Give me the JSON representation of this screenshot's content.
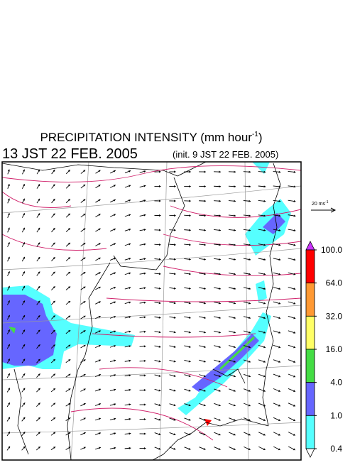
{
  "header": {
    "title": "PRECIPITATION INTENSITY (mm hour",
    "title_exponent": "-1",
    "title_close": ")",
    "valid_time": "13 JST 22 FEB. 2005",
    "init_time": "(init. 9 JST 22 FEB. 2005)"
  },
  "vector_key": {
    "label": "20 ms",
    "exponent": "-1"
  },
  "colorbar": {
    "ticks": [
      {
        "value": 100,
        "label": "100.0"
      },
      {
        "value": 64,
        "label": "64.0"
      },
      {
        "value": 32,
        "label": "32.0"
      },
      {
        "value": 16,
        "label": "16.0"
      },
      {
        "value": 4,
        "label": "4.0"
      },
      {
        "value": 1,
        "label": "1.0"
      },
      {
        "value": 0.4,
        "label": "0.4"
      }
    ],
    "colors": [
      "#ff0000",
      "#ff9933",
      "#ffff66",
      "#44dd44",
      "#6666ff",
      "#55ffff"
    ],
    "over_color": "#cc33ff",
    "under_color": "#ffffff"
  }
}
